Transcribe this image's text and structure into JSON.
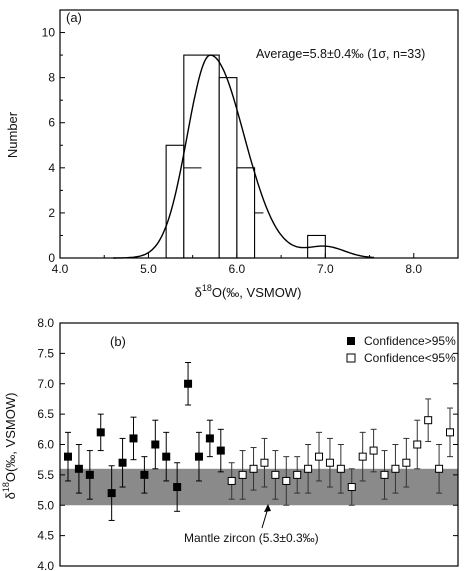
{
  "chart_data": [
    {
      "type": "bar",
      "panel_label": "(a)",
      "annotation": "Average=5.8±0.4‰ (1σ, n=33)",
      "xlabel": "δ18O(‰, VSMOW)",
      "xlabel_parts": {
        "delta": "δ",
        "sup": "18",
        "rest": "O(‰, VSMOW)"
      },
      "ylabel": "Number",
      "xlim": [
        4.0,
        8.5
      ],
      "ylim": [
        0,
        11
      ],
      "x_ticks": [
        "4.0",
        "5.0",
        "6.0",
        "7.0",
        "8.0"
      ],
      "y_ticks": [
        "0",
        "2",
        "4",
        "6",
        "8",
        "10"
      ],
      "bins": [
        {
          "x0": 5.2,
          "x1": 5.4,
          "count": 5
        },
        {
          "x0": 5.4,
          "x1": 5.8,
          "count": 9
        },
        {
          "x0": 5.8,
          "x1": 6.0,
          "count": 8
        },
        {
          "x0": 6.0,
          "x1": 6.2,
          "count": 4
        },
        {
          "x0": 6.8,
          "x1": 7.0,
          "count": 1
        }
      ],
      "inner_ticks": [
        {
          "x0": 5.4,
          "x1": 5.6,
          "y": 4
        },
        {
          "x0": 6.2,
          "x1": 6.3,
          "y": 2
        }
      ],
      "curve": {
        "type": "distribution",
        "mode": 5.7,
        "peak": 9.0,
        "sigma_left": 0.26,
        "sigma_right": 0.38,
        "secondary": {
          "mu": 7.0,
          "height": 0.5,
          "sigma": 0.22
        }
      }
    },
    {
      "type": "scatter",
      "panel_label": "(b)",
      "ylabel": "δ18O(‰, VSMOW)",
      "ylabel_parts": {
        "delta": "δ",
        "sup": "18",
        "rest": "O(‰, VSMOW)"
      },
      "ylim": [
        4.0,
        8.0
      ],
      "y_ticks": [
        "4.0",
        "4.5",
        "5.0",
        "5.5",
        "6.0",
        "6.5",
        "7.0",
        "7.5",
        "8.0"
      ],
      "legend": {
        "placement": "top-right",
        "items": [
          "Confidence>95%",
          "Confidence<95%"
        ]
      },
      "band": {
        "y0": 5.0,
        "y1": 5.6,
        "label": "Mantle zircon (5.3±0.3‰)"
      },
      "series": [
        {
          "name": "Confidence>95%",
          "marker": "filled-square",
          "points": [
            {
              "x": 1,
              "y": 5.8,
              "err": 0.4
            },
            {
              "x": 2,
              "y": 5.6,
              "err": 0.4
            },
            {
              "x": 3,
              "y": 5.5,
              "err": 0.4
            },
            {
              "x": 4,
              "y": 6.2,
              "err": 0.3
            },
            {
              "x": 5,
              "y": 5.2,
              "err": 0.45
            },
            {
              "x": 6,
              "y": 5.7,
              "err": 0.4
            },
            {
              "x": 7,
              "y": 6.1,
              "err": 0.35
            },
            {
              "x": 8,
              "y": 5.5,
              "err": 0.3
            },
            {
              "x": 9,
              "y": 6.0,
              "err": 0.4
            },
            {
              "x": 10,
              "y": 5.8,
              "err": 0.4
            },
            {
              "x": 11,
              "y": 5.3,
              "err": 0.4
            },
            {
              "x": 12,
              "y": 7.0,
              "err": 0.35
            },
            {
              "x": 13,
              "y": 5.8,
              "err": 0.4
            },
            {
              "x": 14,
              "y": 6.1,
              "err": 0.3
            },
            {
              "x": 15,
              "y": 5.9,
              "err": 0.35
            }
          ]
        },
        {
          "name": "Confidence<95%",
          "marker": "open-square",
          "points": [
            {
              "x": 16,
              "y": 5.4,
              "err": 0.3
            },
            {
              "x": 17,
              "y": 5.5,
              "err": 0.4
            },
            {
              "x": 18,
              "y": 5.6,
              "err": 0.35
            },
            {
              "x": 19,
              "y": 5.7,
              "err": 0.4
            },
            {
              "x": 20,
              "y": 5.5,
              "err": 0.4
            },
            {
              "x": 21,
              "y": 5.4,
              "err": 0.4
            },
            {
              "x": 22,
              "y": 5.5,
              "err": 0.3
            },
            {
              "x": 23,
              "y": 5.6,
              "err": 0.4
            },
            {
              "x": 24,
              "y": 5.8,
              "err": 0.4
            },
            {
              "x": 25,
              "y": 5.7,
              "err": 0.4
            },
            {
              "x": 26,
              "y": 5.6,
              "err": 0.4
            },
            {
              "x": 27,
              "y": 5.3,
              "err": 0.3
            },
            {
              "x": 28,
              "y": 5.8,
              "err": 0.4
            },
            {
              "x": 29,
              "y": 5.9,
              "err": 0.35
            },
            {
              "x": 30,
              "y": 5.5,
              "err": 0.4
            },
            {
              "x": 31,
              "y": 5.6,
              "err": 0.4
            },
            {
              "x": 32,
              "y": 5.7,
              "err": 0.4
            },
            {
              "x": 33,
              "y": 6.0,
              "err": 0.4
            },
            {
              "x": 34,
              "y": 6.4,
              "err": 0.35
            },
            {
              "x": 35,
              "y": 5.6,
              "err": 0.4
            },
            {
              "x": 36,
              "y": 6.2,
              "err": 0.4
            }
          ]
        }
      ]
    }
  ]
}
